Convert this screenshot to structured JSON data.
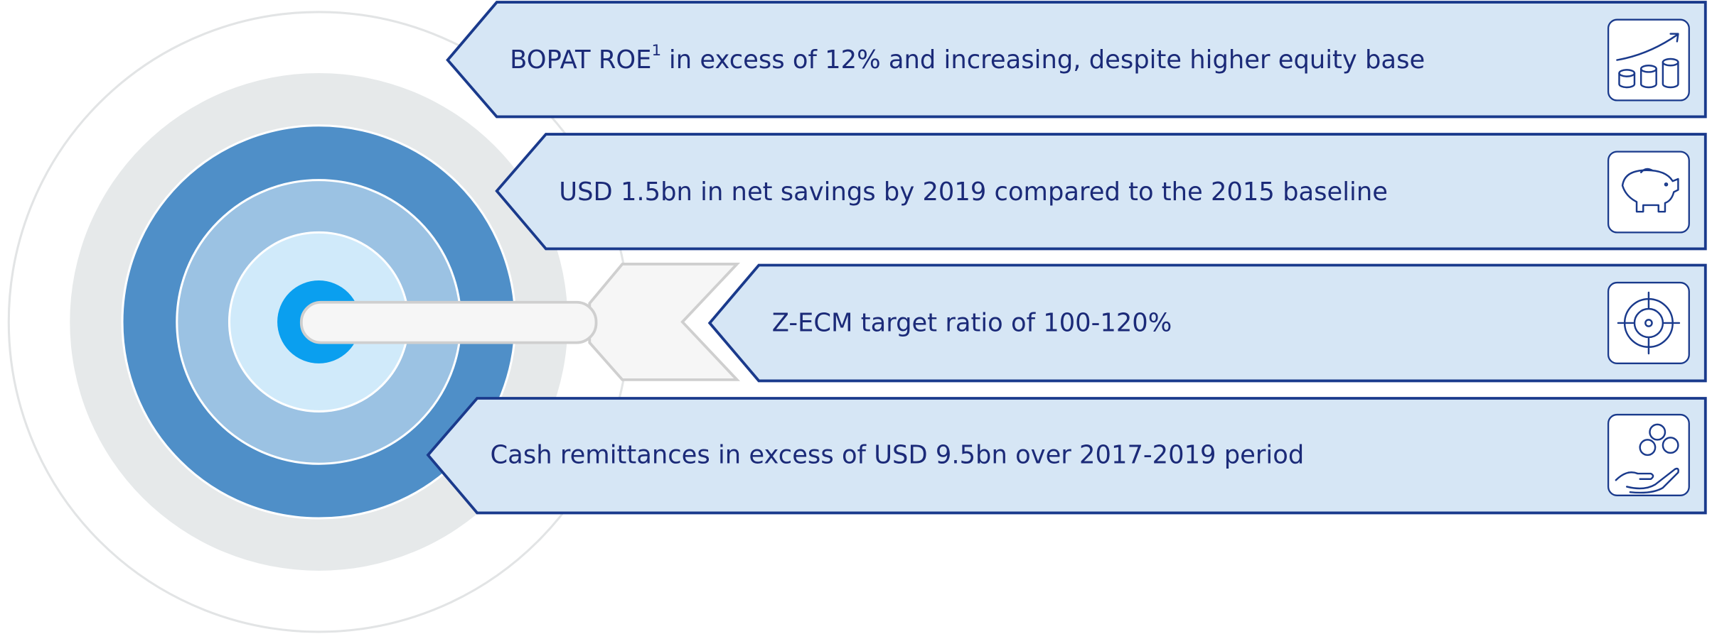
{
  "items": [
    {
      "text_before": "BOPAT ROE",
      "footnote_marker": "1",
      "text_after": "in excess of 12% and increasing, despite higher equity base"
    },
    {
      "text": "USD 1.5bn in net savings by 2019 compared to the 2015 baseline"
    },
    {
      "text": "Z-ECM target ratio of 100-120%"
    },
    {
      "text": "Cash remittances in excess of USD 9.5bn over 2017-2019 period"
    }
  ]
}
